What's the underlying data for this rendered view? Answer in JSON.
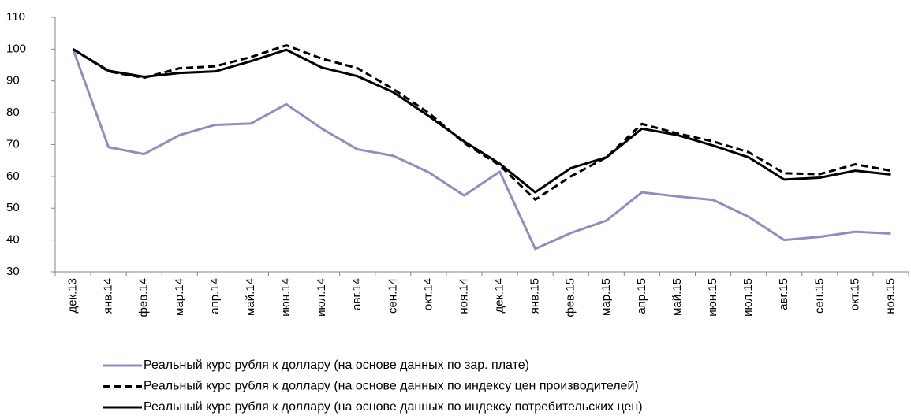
{
  "chart_data": {
    "type": "line",
    "categories": [
      "дек.13",
      "янв.14",
      "фев.14",
      "мар.14",
      "апр.14",
      "май.14",
      "июн.14",
      "июл.14",
      "авг.14",
      "сен.14",
      "окт.14",
      "ноя.14",
      "дек.14",
      "янв.15",
      "фев.15",
      "мар.15",
      "апр.15",
      "май.15",
      "июн.15",
      "июл.15",
      "авг.15",
      "сен.15",
      "окт.15",
      "ноя.15"
    ],
    "series": [
      {
        "name": "Реальный курс рубля к доллару (на основе данных по зар. плате)",
        "color": "#8b8fc4",
        "style": "solid",
        "values": [
          100,
          69.2,
          67,
          73,
          76.2,
          76.6,
          82.7,
          75,
          68.5,
          66.5,
          61.3,
          54,
          61.5,
          37.2,
          42.2,
          46.1,
          55,
          53.7,
          52.6,
          47.3,
          40,
          41,
          42.6,
          42
        ]
      },
      {
        "name": "Реальный курс рубля к доллару (на основе данных по индексу цен производителей)",
        "color": "#000000",
        "style": "dashed",
        "values": [
          100,
          93,
          91,
          94,
          94.6,
          97.5,
          101.2,
          97,
          94,
          87.5,
          80,
          70.5,
          63.5,
          52.7,
          60,
          66,
          76.5,
          73.5,
          71,
          67.6,
          61,
          60.7,
          63.8,
          61.8
        ]
      },
      {
        "name": "Реальный курс рубля к доллару (на основе данных по индексу потребительских цен)",
        "color": "#000000",
        "style": "solid",
        "values": [
          100,
          93.2,
          91.3,
          92.5,
          93,
          96.2,
          99.8,
          94.2,
          91.5,
          86.5,
          79,
          71,
          64,
          55,
          62.6,
          66,
          75,
          73,
          69.7,
          66,
          59,
          59.6,
          61.8,
          60.6
        ]
      }
    ],
    "ylim": [
      30,
      110
    ],
    "yticks": [
      30,
      40,
      50,
      60,
      70,
      80,
      90,
      100,
      110
    ],
    "grid": false
  }
}
